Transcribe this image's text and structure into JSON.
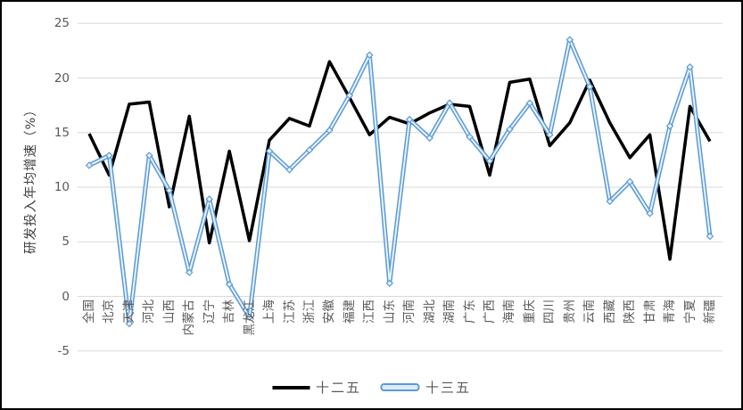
{
  "chart_data": {
    "type": "line",
    "title": "",
    "ylabel": "研发投入年均增速（%）",
    "xlabel": "",
    "ylim": [
      -5,
      25
    ],
    "yticks": [
      25,
      20,
      15,
      10,
      5,
      0,
      -5
    ],
    "grid": true,
    "legend_position": "bottom",
    "gridline_color": "#D9D9D9",
    "text_color": "#595959",
    "categories": [
      "全国",
      "北京",
      "天津",
      "河北",
      "山西",
      "内蒙古",
      "辽宁",
      "吉林",
      "黑龙江",
      "上海",
      "江苏",
      "浙江",
      "安徽",
      "福建",
      "江西",
      "山东",
      "河南",
      "湖北",
      "湖南",
      "广东",
      "广西",
      "海南",
      "重庆",
      "四川",
      "贵州",
      "云南",
      "西藏",
      "陕西",
      "甘肃",
      "青海",
      "宁夏",
      "新疆"
    ],
    "series": [
      {
        "name": "十二五",
        "color": "#000000",
        "style": "solid",
        "values": [
          14.9,
          11.1,
          17.6,
          17.8,
          8.2,
          16.5,
          4.9,
          13.3,
          5.1,
          14.3,
          16.3,
          15.6,
          21.5,
          18.2,
          14.8,
          16.4,
          15.8,
          16.8,
          17.6,
          17.4,
          11.1,
          19.6,
          19.9,
          13.8,
          15.9,
          19.8,
          15.9,
          12.7,
          14.8,
          3.4,
          17.4,
          14.2
        ]
      },
      {
        "name": "十三五",
        "color": "#5B9BD5",
        "inner_color": "#EAF2FA",
        "style": "double-line-diamond-markers",
        "values": [
          12.0,
          12.9,
          -2.5,
          12.9,
          9.7,
          2.2,
          8.9,
          1.1,
          -1.9,
          13.3,
          11.6,
          13.4,
          15.2,
          18.4,
          22.1,
          1.2,
          16.2,
          14.5,
          17.7,
          14.6,
          12.4,
          15.3,
          17.7,
          14.8,
          23.5,
          19.2,
          8.7,
          10.5,
          7.6,
          15.6,
          21.0,
          5.5
        ]
      }
    ]
  },
  "legend": {
    "item1": "十二五",
    "item2": "十三五"
  }
}
